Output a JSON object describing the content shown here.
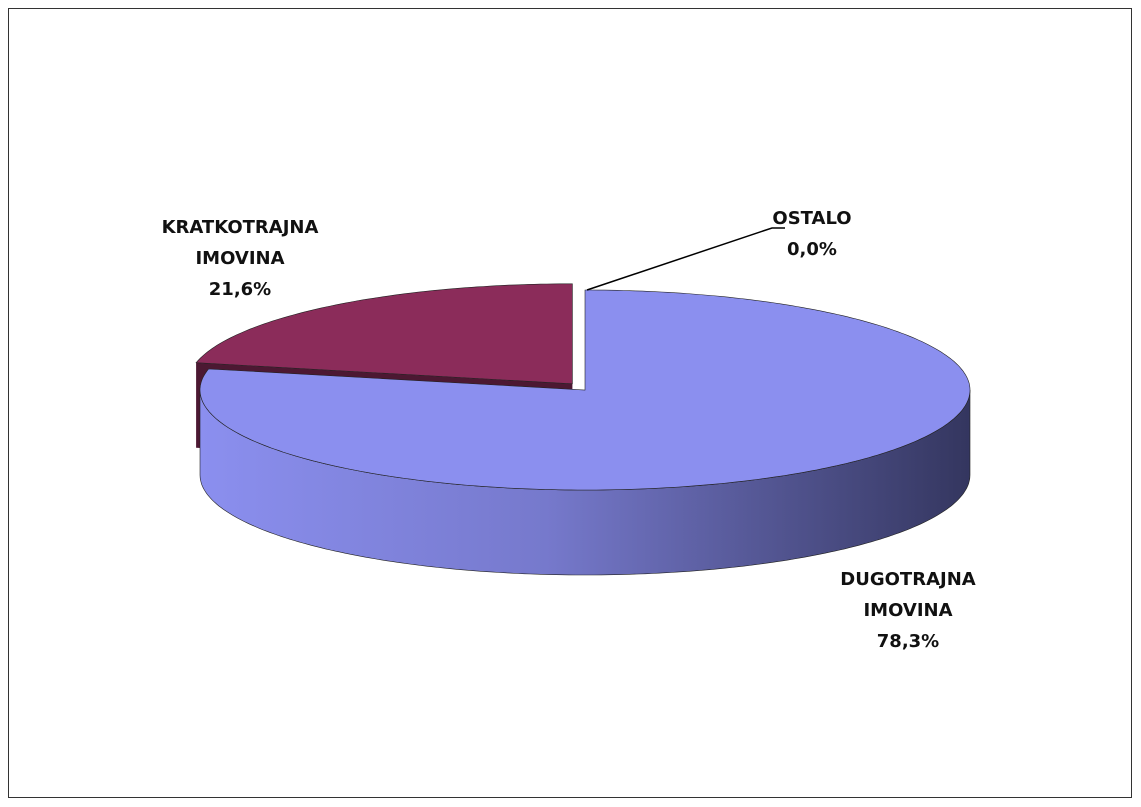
{
  "chart_data": {
    "type": "pie",
    "categories": [
      "DUGOTRAJNA IMOVINA",
      "KRATKOTRAJNA IMOVINA",
      "OSTALO"
    ],
    "values": [
      78.3,
      21.6,
      0.0
    ],
    "value_labels": [
      "78,3%",
      "21,6%",
      "0,0%"
    ],
    "colors": [
      "#8b8fef",
      "#8b2c5a",
      "#ffffff"
    ]
  }
}
